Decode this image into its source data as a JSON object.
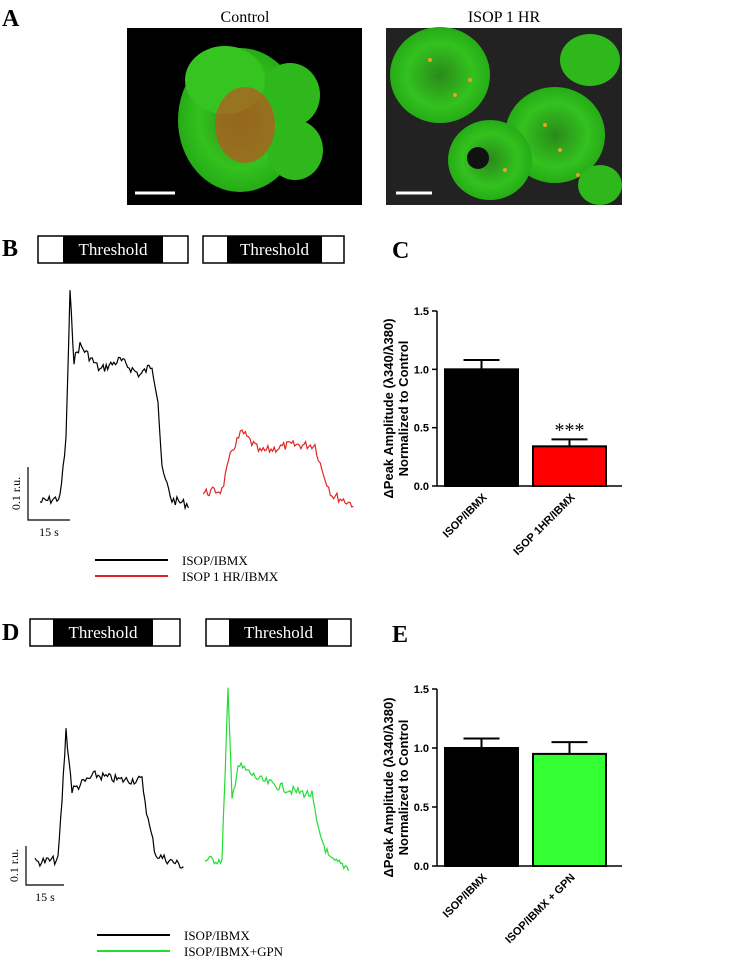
{
  "panel_labels": [
    "A",
    "B",
    "C",
    "D",
    "E"
  ],
  "images": [
    "Control",
    "ISOP 1 HR"
  ],
  "traces_B": {
    "protocol": [
      "Threshold",
      "Threshold"
    ],
    "scale_y": "0.1 r.u.",
    "scale_x": "15 s",
    "legend": [
      {
        "name": "ISOP/IBMX",
        "color": "#000000"
      },
      {
        "name": "ISOP 1 HR/IBMX",
        "color": "#e02424"
      }
    ]
  },
  "traces_D": {
    "protocol": [
      "Threshold",
      "Threshold"
    ],
    "scale_y": "0.1 r.u.",
    "scale_x": "15 s",
    "legend": [
      {
        "name": "ISOP/IBMX",
        "color": "#000000"
      },
      {
        "name": "ISOP/IBMX+GPN",
        "color": "#22dd33"
      }
    ]
  },
  "chart_data": [
    {
      "type": "bar",
      "y_label": [
        "ΔPeak Amplitude (λ340/λ380)",
        "Normalized to Control"
      ],
      "categories": [
        "ISOP/IBMX",
        "ISOP 1HR/IBMX"
      ],
      "values": [
        1.0,
        0.34
      ],
      "errors": [
        0.08,
        0.06
      ],
      "colors": [
        "#000000",
        "#ff0000"
      ],
      "annotations": [
        null,
        "***"
      ],
      "ylim": [
        0,
        1.5
      ],
      "yticks": [
        {
          "value": 0,
          "label": "0.0"
        },
        {
          "value": 0.5,
          "label": "0.5"
        },
        {
          "value": 1,
          "label": "1.0"
        },
        {
          "value": 1.5,
          "label": "1.5"
        }
      ]
    },
    {
      "type": "bar",
      "y_label": [
        "ΔPeak Amplitude (λ340/λ380)",
        "Normalized to Control"
      ],
      "categories": [
        "ISOP/IBMX",
        "ISOP/IBMX + GPN"
      ],
      "values": [
        1.0,
        0.95
      ],
      "errors": [
        0.08,
        0.1
      ],
      "colors": [
        "#000000",
        "#33ff33"
      ],
      "annotations": [
        null,
        null
      ],
      "ylim": [
        0,
        1.5
      ],
      "yticks": [
        {
          "value": 0,
          "label": "0.0"
        },
        {
          "value": 0.5,
          "label": "0.5"
        },
        {
          "value": 1,
          "label": "1.0"
        },
        {
          "value": 1.5,
          "label": "1.5"
        }
      ]
    }
  ]
}
